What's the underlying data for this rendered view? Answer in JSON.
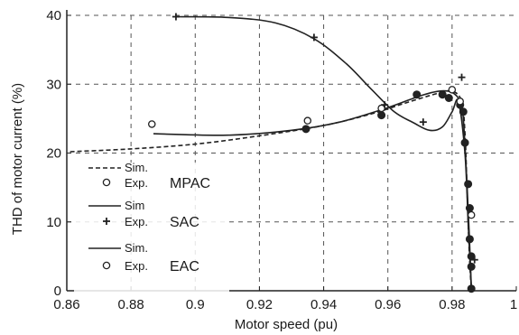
{
  "chart_data": {
    "type": "line",
    "xlabel": "Motor speed (pu)",
    "ylabel": "THD of motor current (%)",
    "xlim": [
      0.86,
      1.0
    ],
    "ylim": [
      0,
      40
    ],
    "x_ticks": [
      "0.86",
      "0.88",
      "0.9",
      "0.92",
      "0.94",
      "0.96",
      "0.98",
      "1"
    ],
    "x_tick_values": [
      0.86,
      0.88,
      0.9,
      0.92,
      0.94,
      0.96,
      0.98,
      1.0
    ],
    "y_ticks": [
      "0",
      "10",
      "20",
      "30",
      "40"
    ],
    "y_tick_values": [
      0,
      10,
      20,
      30,
      40
    ],
    "grid": true,
    "legend_placement": "left-bottom",
    "legend": [
      {
        "group": "MPAC",
        "sim_label": "Sim.",
        "exp_label": "Exp."
      },
      {
        "group": "SAC",
        "sim_label": "Sim",
        "exp_label": "Exp."
      },
      {
        "group": "EAC",
        "sim_label": "Sim.",
        "exp_label": "Exp."
      }
    ],
    "series": [
      {
        "group": "MPAC",
        "kind": "sim",
        "style": "dashed",
        "x": [
          0.861,
          0.88,
          0.9,
          0.92,
          0.94,
          0.955,
          0.965,
          0.975,
          0.98,
          0.983,
          0.984,
          0.9845,
          0.985,
          0.9855,
          0.986
        ],
        "y": [
          20.2,
          20.6,
          21.3,
          22.5,
          24.0,
          25.7,
          27.2,
          28.6,
          29.0,
          27.5,
          23.0,
          17.0,
          10.0,
          4.0,
          0.3
        ]
      },
      {
        "group": "MPAC",
        "kind": "exp",
        "marker": "dot",
        "x": [
          0.9345,
          0.958,
          0.969,
          0.977,
          0.979,
          0.9825,
          0.9835,
          0.984,
          0.985,
          0.9855,
          0.9855,
          0.986,
          0.986,
          0.986
        ],
        "y": [
          23.5,
          25.5,
          28.5,
          28.5,
          28.0,
          27.0,
          26.0,
          21.5,
          15.5,
          12.0,
          7.5,
          5.0,
          3.5,
          0.3
        ]
      },
      {
        "group": "SAC",
        "kind": "sim",
        "style": "solid",
        "x": [
          0.894,
          0.91,
          0.925,
          0.937,
          0.947,
          0.955,
          0.962,
          0.968,
          0.973,
          0.977,
          0.98,
          0.982,
          0.984,
          0.985,
          0.986
        ],
        "y": [
          39.8,
          39.7,
          38.9,
          36.6,
          33.0,
          29.2,
          26.0,
          24.4,
          23.3,
          23.8,
          26.0,
          27.5,
          20.0,
          10.0,
          0.3
        ]
      },
      {
        "group": "SAC",
        "kind": "exp",
        "marker": "plus",
        "x": [
          0.894,
          0.937,
          0.959,
          0.971,
          0.983,
          0.987
        ],
        "y": [
          39.8,
          36.8,
          27.0,
          24.5,
          31.0,
          4.5
        ]
      },
      {
        "group": "EAC",
        "kind": "sim",
        "style": "solid",
        "x": [
          0.887,
          0.91,
          0.93,
          0.945,
          0.96,
          0.97,
          0.976,
          0.98,
          0.9825,
          0.9835,
          0.985,
          0.986
        ],
        "y": [
          22.8,
          22.6,
          23.3,
          24.5,
          26.6,
          28.3,
          29.0,
          28.8,
          27.5,
          25.0,
          12.0,
          0.5
        ]
      },
      {
        "group": "EAC",
        "kind": "exp",
        "marker": "circle",
        "x": [
          0.8865,
          0.935,
          0.958,
          0.98,
          0.9825,
          0.986
        ],
        "y": [
          24.2,
          24.7,
          26.5,
          29.2,
          27.5,
          11.0
        ]
      }
    ]
  }
}
